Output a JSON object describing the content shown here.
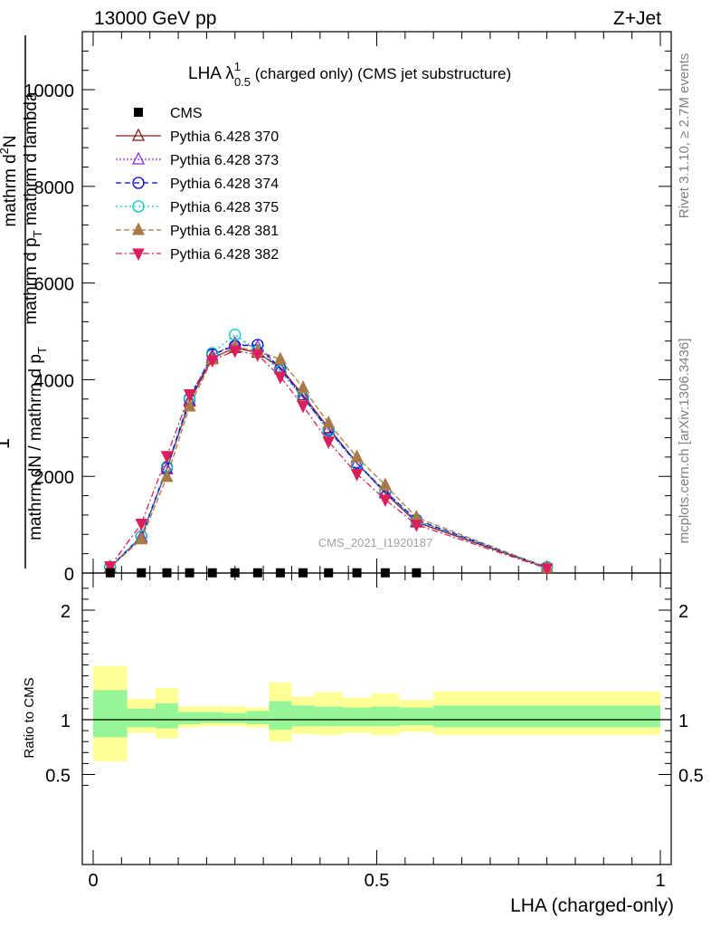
{
  "header": {
    "left": "13000 GeV pp",
    "right": "Z+Jet"
  },
  "title": {
    "lead": "LHA λ",
    "sup": "1",
    "sub": "0.5",
    "tail": " (charged only) (CMS jet substructure)"
  },
  "watermark": "CMS_2021_I1920187",
  "side_labels": {
    "rivet": "Rivet 3.1.10, ≥ 2.7M events",
    "mcplots": "mcplots.cern.ch [arXiv:1306.3436]"
  },
  "ylabel_main": {
    "one": "1",
    "denominator": "mathrm dN / mathrm d p",
    "denominator_sub": "T",
    "numerator_line1": "mathrm d",
    "numerator_sup": "2",
    "numerator_line1_tail": "N",
    "numerator_line2": "mathrm d p",
    "numerator_line2_sub": "T",
    "numerator_line2_tail": " mathrm d lambda"
  },
  "chart_data": [
    {
      "panel": "main",
      "type": "line",
      "xlabel": "LHA (charged-only)",
      "xlim": [
        0,
        1
      ],
      "ylim": [
        0,
        11200
      ],
      "yticks": [
        0,
        2000,
        4000,
        6000,
        8000,
        10000
      ],
      "yticklabels": [
        "0",
        "2000",
        "4000",
        "6000",
        "8000",
        "10000"
      ],
      "legend_position": "top-left",
      "x": [
        0.03,
        0.085,
        0.13,
        0.17,
        0.21,
        0.25,
        0.29,
        0.33,
        0.37,
        0.415,
        0.465,
        0.515,
        0.57,
        0.8
      ],
      "series": [
        {
          "name": "CMS",
          "color": "#000000",
          "marker": "square",
          "dash": "",
          "values": [
            5,
            5,
            5,
            5,
            5,
            5,
            5,
            5,
            5,
            5,
            5,
            5,
            5,
            null
          ]
        },
        {
          "name": "Pythia 6.428 370",
          "color": "#8b1a1a",
          "marker": "triangle-open",
          "dash": "",
          "values": [
            120,
            750,
            2150,
            3550,
            4450,
            4660,
            4560,
            4250,
            3680,
            3000,
            2280,
            1650,
            1050,
            110
          ]
        },
        {
          "name": "Pythia 6.428 373",
          "color": "#8a2be2",
          "marker": "triangle-open",
          "dash": "2,2",
          "values": [
            120,
            740,
            2160,
            3580,
            4500,
            4750,
            4680,
            4220,
            3650,
            2980,
            2280,
            1680,
            1080,
            115
          ]
        },
        {
          "name": "Pythia 6.428 374",
          "color": "#0000dd",
          "marker": "circle-open",
          "dash": "6,4",
          "values": [
            125,
            760,
            2180,
            3600,
            4520,
            4700,
            4720,
            4230,
            3640,
            2960,
            2270,
            1690,
            1100,
            120
          ]
        },
        {
          "name": "Pythia 6.428 375",
          "color": "#00c8b0",
          "marker": "circle-open",
          "dash": "2,3",
          "values": [
            125,
            760,
            2200,
            3620,
            4550,
            4930,
            4600,
            4180,
            3620,
            2940,
            2250,
            1670,
            1080,
            115
          ]
        },
        {
          "name": "Pythia 6.428 381",
          "color": "#a87a48",
          "marker": "triangle-filled",
          "dash": "6,3",
          "values": [
            115,
            700,
            1990,
            3450,
            4420,
            4680,
            4600,
            4420,
            3830,
            3100,
            2400,
            1820,
            1150,
            110
          ]
        },
        {
          "name": "Pythia 6.428 382",
          "color": "#dc1e5a",
          "marker": "triangle-down-filled",
          "dash": "7,3,2,3",
          "values": [
            140,
            1020,
            2420,
            3700,
            4400,
            4600,
            4520,
            4060,
            3460,
            2720,
            2050,
            1520,
            1000,
            95
          ]
        }
      ]
    },
    {
      "panel": "ratio",
      "type": "area",
      "ylabel": "Ratio to CMS",
      "xlabel": "LHA (charged-only)",
      "xlim": [
        0,
        1
      ],
      "ylim": [
        0.35,
        2.25
      ],
      "yticks": [
        0.5,
        1,
        2
      ],
      "yticklabels": [
        "0.5",
        "1",
        "2"
      ],
      "xticks": [
        0,
        0.5,
        1
      ],
      "xticklabels": [
        "0",
        "0.5",
        "1"
      ],
      "reference_line": 1,
      "bins": [
        {
          "lo": 0.0,
          "hi": 0.06,
          "outer": [
            0.62,
            1.49
          ],
          "inner": [
            0.84,
            1.27
          ]
        },
        {
          "lo": 0.06,
          "hi": 0.11,
          "outer": [
            0.88,
            1.19
          ],
          "inner": [
            0.93,
            1.1
          ]
        },
        {
          "lo": 0.11,
          "hi": 0.15,
          "outer": [
            0.83,
            1.29
          ],
          "inner": [
            0.92,
            1.15
          ]
        },
        {
          "lo": 0.15,
          "hi": 0.19,
          "outer": [
            0.93,
            1.12
          ],
          "inner": [
            0.96,
            1.07
          ]
        },
        {
          "lo": 0.19,
          "hi": 0.23,
          "outer": [
            0.94,
            1.12
          ],
          "inner": [
            0.97,
            1.07
          ]
        },
        {
          "lo": 0.23,
          "hi": 0.27,
          "outer": [
            0.94,
            1.12
          ],
          "inner": [
            0.97,
            1.06
          ]
        },
        {
          "lo": 0.27,
          "hi": 0.31,
          "outer": [
            0.93,
            1.11
          ],
          "inner": [
            0.96,
            1.08
          ]
        },
        {
          "lo": 0.31,
          "hi": 0.35,
          "outer": [
            0.8,
            1.34
          ],
          "inner": [
            0.91,
            1.17
          ]
        },
        {
          "lo": 0.35,
          "hi": 0.39,
          "outer": [
            0.87,
            1.21
          ],
          "inner": [
            0.94,
            1.13
          ]
        },
        {
          "lo": 0.39,
          "hi": 0.44,
          "outer": [
            0.86,
            1.25
          ],
          "inner": [
            0.94,
            1.12
          ]
        },
        {
          "lo": 0.44,
          "hi": 0.49,
          "outer": [
            0.88,
            1.2
          ],
          "inner": [
            0.94,
            1.11
          ]
        },
        {
          "lo": 0.49,
          "hi": 0.54,
          "outer": [
            0.86,
            1.24
          ],
          "inner": [
            0.94,
            1.12
          ]
        },
        {
          "lo": 0.54,
          "hi": 0.6,
          "outer": [
            0.89,
            1.18
          ],
          "inner": [
            0.95,
            1.11
          ]
        },
        {
          "lo": 0.6,
          "hi": 1.0,
          "outer": [
            0.86,
            1.26
          ],
          "inner": [
            0.93,
            1.13
          ]
        }
      ]
    }
  ]
}
